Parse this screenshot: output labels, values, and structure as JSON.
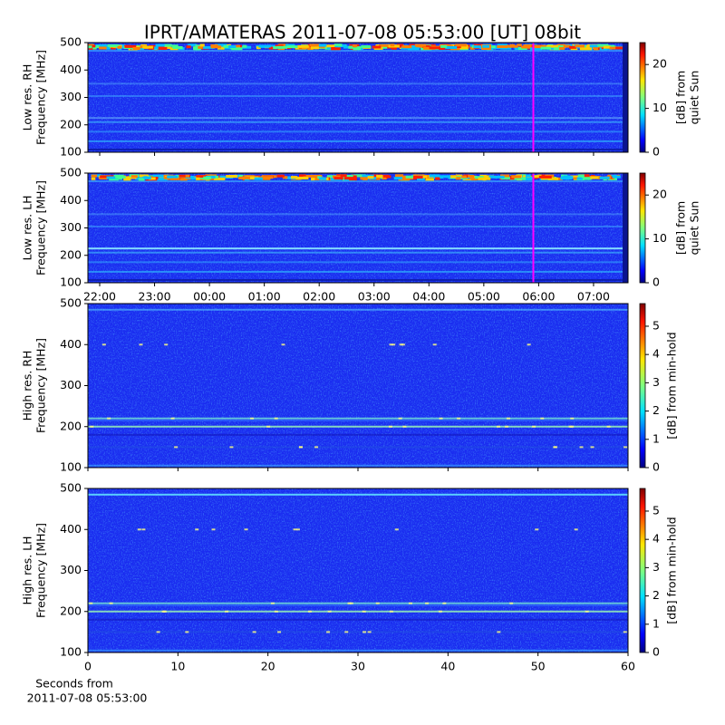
{
  "title": "IPRT/AMATERAS 2011-07-08 05:53:00 [UT]   08bit",
  "chart_data": [
    {
      "type": "heatmap",
      "ylabel": [
        "Low res. RH",
        "Frequency [MHz]"
      ],
      "ylim": [
        100,
        500
      ],
      "yticks": [
        100,
        200,
        300,
        400,
        500
      ],
      "colormap": "jet",
      "colorbar": {
        "label": [
          "[dB] from",
          "quiet Sun"
        ],
        "lim": [
          0,
          25
        ],
        "ticks": [
          0,
          10,
          20
        ]
      }
    },
    {
      "type": "heatmap",
      "ylabel": [
        "Low res. LH",
        "Frequency [MHz]"
      ],
      "ylim": [
        100,
        500
      ],
      "yticks": [
        100,
        200,
        300,
        400,
        500
      ],
      "time_ticks": [
        "22:00",
        "23:00",
        "00:00",
        "01:00",
        "02:00",
        "03:00",
        "04:00",
        "05:00",
        "06:00",
        "07:00"
      ],
      "colormap": "jet",
      "colorbar": {
        "label": [
          "[dB] from",
          "quiet Sun"
        ],
        "lim": [
          0,
          25
        ],
        "ticks": [
          0,
          10,
          20
        ]
      }
    },
    {
      "type": "heatmap",
      "ylabel": [
        "High res. RH",
        "Frequency [MHz]"
      ],
      "ylim": [
        100,
        500
      ],
      "yticks": [
        100,
        200,
        300,
        400,
        500
      ],
      "colormap": "jet",
      "colorbar": {
        "label": [
          "[dB] from min-hold"
        ],
        "lim": [
          0,
          5.8
        ],
        "ticks": [
          0,
          1,
          2,
          3,
          4,
          5
        ]
      }
    },
    {
      "type": "heatmap",
      "ylabel": [
        "High res. LH",
        "Frequency [MHz]"
      ],
      "ylim": [
        100,
        500
      ],
      "yticks": [
        100,
        200,
        300,
        400,
        500
      ],
      "xlim": [
        0,
        60
      ],
      "xticks": [
        0,
        10,
        20,
        30,
        40,
        50,
        60
      ],
      "xlabel": [
        "Seconds from",
        "2011-07-08 05:53:00"
      ],
      "colormap": "jet",
      "colorbar": {
        "label": [
          "[dB] from min-hold"
        ],
        "lim": [
          0,
          5.8
        ],
        "ticks": [
          0,
          1,
          2,
          3,
          4,
          5
        ]
      }
    }
  ]
}
